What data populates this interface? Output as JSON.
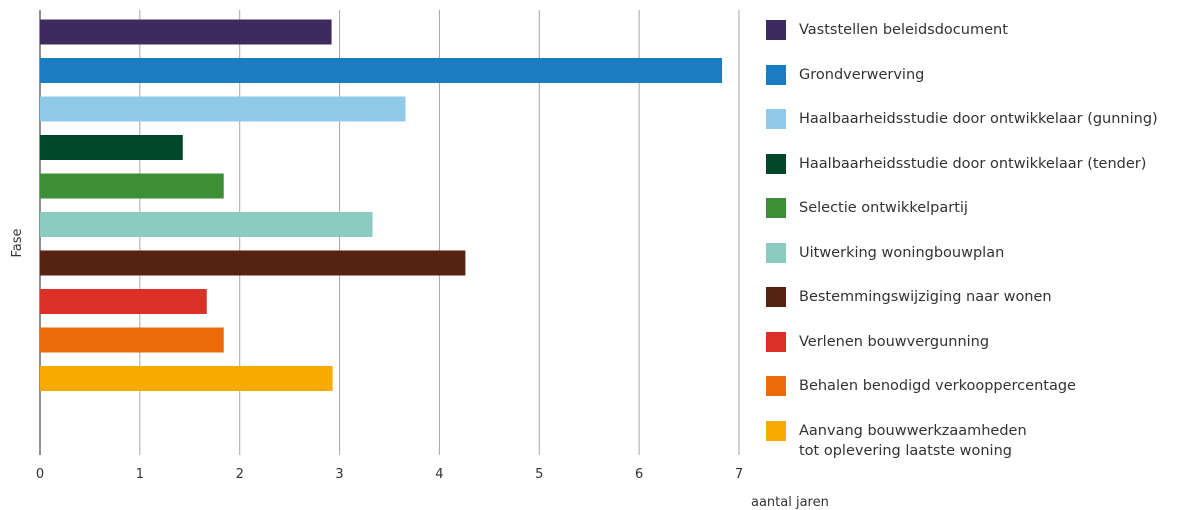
{
  "chart_data": {
    "type": "bar",
    "orientation": "horizontal",
    "title": "",
    "xlabel": "aantal jaren",
    "ylabel": "Fase",
    "xlim": [
      0,
      7
    ],
    "xticks": [
      "0",
      "1",
      "2",
      "3",
      "4",
      "5",
      "6",
      "7"
    ],
    "grid": true,
    "legend_position": "right",
    "categories": [
      [
        "Vaststellen beleidsdocument"
      ],
      [
        "Grondverwerving"
      ],
      [
        "Haalbaarheidsstudie door ontwikkelaar (gunning)"
      ],
      [
        "Haalbaarheidsstudie door ontwikkelaar (tender)"
      ],
      [
        "Selectie ontwikkelpartij"
      ],
      [
        "Uitwerking woningbouwplan"
      ],
      [
        "Bestemmingswijziging naar wonen"
      ],
      [
        "Verlenen bouwvergunning"
      ],
      [
        "Behalen benodigd verkooppercentage"
      ],
      [
        "Aanvang bouwwerkzaamheden",
        "tot oplevering laatste woning"
      ]
    ],
    "values": [
      2.92,
      6.83,
      3.66,
      1.43,
      1.84,
      3.33,
      4.26,
      1.67,
      1.84,
      2.93
    ],
    "colors": [
      "#3d2a5e",
      "#1a7cc1",
      "#8fcae8",
      "#00472a",
      "#3d8f35",
      "#8acdc0",
      "#562312",
      "#d93127",
      "#eb6b0a",
      "#f7aa00"
    ]
  }
}
